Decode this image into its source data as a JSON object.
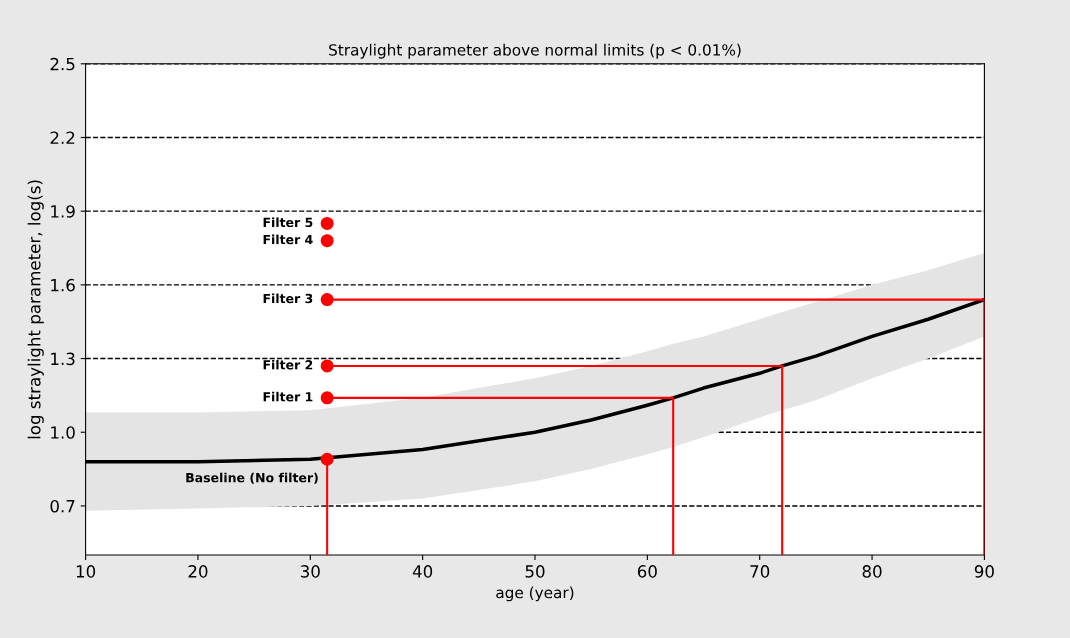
{
  "chart_data": {
    "type": "line",
    "title": "Straylight parameter above normal limits (p < 0.01%)",
    "xlabel": "age (year)",
    "ylabel": "log straylight parameter, log(s)",
    "xlim": [
      10,
      90
    ],
    "xticks": [
      10,
      20,
      30,
      40,
      50,
      60,
      70,
      80,
      90
    ],
    "ylim": [
      0.5,
      2.5
    ],
    "yticks": [
      0.7,
      {
        "value": 1.0,
        "label": "1.0"
      },
      1.3,
      1.6,
      1.9,
      2.2,
      2.5
    ],
    "grid": "y",
    "legend": false,
    "series": [
      {
        "type": "line",
        "color": "#000000",
        "marker": "none",
        "x": [
          10,
          20,
          30,
          40,
          50,
          55,
          60,
          62.3,
          65,
          70,
          72,
          75,
          80,
          85,
          90
        ],
        "values": [
          0.88,
          0.88,
          0.89,
          0.93,
          1.0,
          1.05,
          1.11,
          1.14,
          1.18,
          1.24,
          1.27,
          1.31,
          1.39,
          1.46,
          1.54
        ],
        "lower": [
          0.68,
          0.69,
          0.7,
          0.73,
          0.8,
          0.85,
          0.91,
          0.94,
          0.98,
          1.06,
          1.09,
          1.13,
          1.22,
          1.3,
          1.39
        ],
        "upper": [
          1.08,
          1.08,
          1.09,
          1.14,
          1.22,
          1.27,
          1.33,
          1.36,
          1.39,
          1.46,
          1.49,
          1.53,
          1.6,
          1.66,
          1.73
        ]
      },
      {
        "type": "line",
        "color": "#ff0000",
        "marker": "none",
        "x": [
          31.5,
          31.5
        ],
        "values": [
          0.89,
          0.5
        ]
      },
      {
        "type": "line",
        "color": "#ff0000",
        "marker": "none",
        "x": [
          31.5,
          62.3,
          62.3
        ],
        "values": [
          1.14,
          1.14,
          0.5
        ]
      },
      {
        "type": "line",
        "color": "#ff0000",
        "marker": "none",
        "x": [
          31.5,
          72,
          72
        ],
        "values": [
          1.27,
          1.27,
          0.5
        ]
      },
      {
        "type": "line",
        "color": "#ff0000",
        "marker": "none",
        "x": [
          31.5,
          90,
          90
        ],
        "values": [
          1.54,
          1.54,
          0.5
        ]
      },
      {
        "type": "scatter",
        "name": "Baseline (No filter)",
        "color": "#ff0000",
        "marker": "circle",
        "x": [
          31.5
        ],
        "values": [
          0.89
        ]
      },
      {
        "type": "scatter",
        "name": "Filter 1",
        "color": "#ff0000",
        "marker": "circle",
        "x": [
          31.5
        ],
        "values": [
          1.14
        ]
      },
      {
        "type": "scatter",
        "name": "Filter 2",
        "color": "#ff0000",
        "marker": "circle",
        "x": [
          31.5
        ],
        "values": [
          1.27
        ]
      },
      {
        "type": "scatter",
        "name": "Filter 3",
        "color": "#ff0000",
        "marker": "circle",
        "x": [
          31.5
        ],
        "values": [
          1.54
        ]
      },
      {
        "type": "scatter",
        "name": "Filter 4",
        "color": "#ff0000",
        "marker": "circle",
        "x": [
          31.5
        ],
        "values": [
          1.78
        ]
      },
      {
        "type": "scatter",
        "name": "Filter 5",
        "color": "#ff0000",
        "marker": "circle",
        "x": [
          31.5
        ],
        "values": [
          1.85
        ]
      }
    ]
  }
}
